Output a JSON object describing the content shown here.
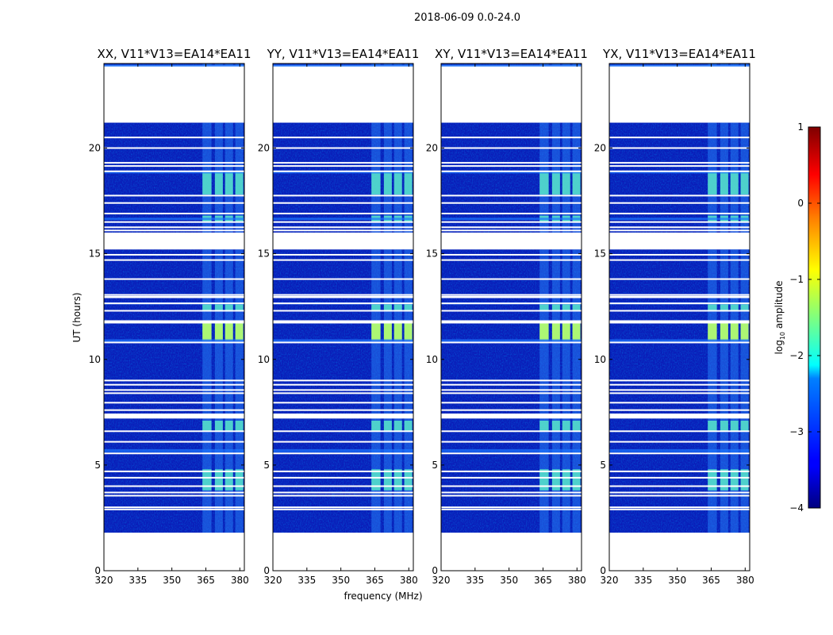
{
  "chart_data": {
    "type": "heatmap",
    "suptitle": "2018-06-09 0.0-24.0",
    "panels": [
      {
        "title": "XX, V11*V13=EA14*EA11"
      },
      {
        "title": "YY, V11*V13=EA14*EA11"
      },
      {
        "title": "XY, V11*V13=EA14*EA11"
      },
      {
        "title": "YX, V11*V13=EA14*EA11"
      }
    ],
    "xlabel": "frequency (MHz)",
    "ylabel": "UT (hours)",
    "xlim": [
      320,
      382
    ],
    "ylim": [
      0,
      24
    ],
    "xticks": [
      "320",
      "335",
      "350",
      "365",
      "380"
    ],
    "xtick_values": [
      320,
      335,
      350,
      365,
      380
    ],
    "yticks": [
      "0",
      "5",
      "10",
      "15",
      "20"
    ],
    "ytick_values": [
      0,
      5,
      10,
      15,
      20
    ],
    "colorbar": {
      "label": "log10 amplitude",
      "ticks": [
        "−4",
        "−3",
        "−2",
        "−1",
        "0",
        "1"
      ],
      "tick_values": [
        -4,
        -3,
        -2,
        -1,
        0,
        1
      ],
      "range": [
        -4,
        1
      ],
      "colormap": "jet"
    },
    "data_time_ranges_hours": [
      [
        1.8,
        15.2
      ],
      [
        16.0,
        21.2
      ],
      [
        23.9,
        24.0
      ]
    ],
    "flagged_rows_hours": [
      2.9,
      3.0,
      3.55,
      3.7,
      4.0,
      4.4,
      4.7,
      5.55,
      6.1,
      6.6,
      7.4,
      7.6,
      7.95,
      8.4,
      8.55,
      8.8,
      9.0,
      10.8,
      11.8,
      12.3,
      12.65,
      13.05,
      13.8,
      14.7,
      14.95,
      16.1,
      16.25,
      16.5,
      16.9,
      17.4,
      17.75,
      18.9,
      19.15,
      19.3,
      20.0,
      20.5
    ],
    "rfi_band_mhz": [
      [
        363.5,
        367.5
      ],
      [
        369,
        372.5
      ],
      [
        373.5,
        377
      ],
      [
        378,
        381.5
      ]
    ],
    "rfi_bright_times_hours": [
      [
        3.8,
        4.8
      ],
      [
        6.6,
        7.1
      ],
      [
        10.9,
        11.7
      ],
      [
        12.3,
        12.6
      ],
      [
        16.5,
        16.8
      ],
      [
        17.8,
        18.9
      ]
    ]
  }
}
